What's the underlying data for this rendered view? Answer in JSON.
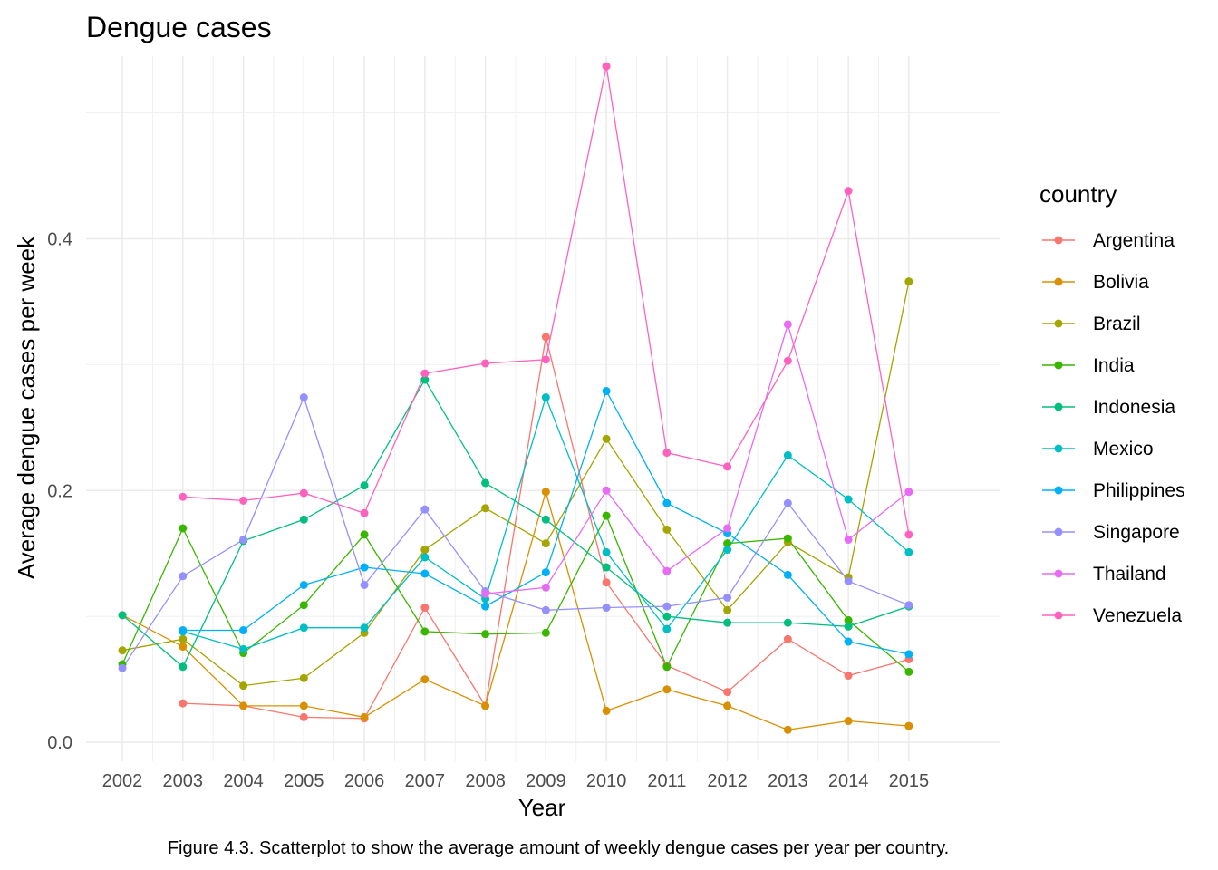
{
  "chart_data": {
    "type": "line",
    "title": "Dengue cases",
    "xlabel": "Year",
    "ylabel": "Average dengue cases per week",
    "x": [
      2002,
      2003,
      2004,
      2005,
      2006,
      2007,
      2008,
      2009,
      2010,
      2011,
      2012,
      2013,
      2014,
      2015
    ],
    "xlim": [
      2001.4,
      2016.5
    ],
    "ylim": [
      -0.015,
      0.545
    ],
    "yticks": [
      0.0,
      0.2,
      0.4
    ],
    "ytick_labels": [
      "0.0",
      "0.2",
      "0.4"
    ],
    "grid": true,
    "legend_title": "country",
    "legend_position": "right",
    "series": [
      {
        "name": "Argentina",
        "color": "#F8766D",
        "values": [
          null,
          0.031,
          0.029,
          0.02,
          0.019,
          0.107,
          0.029,
          0.322,
          0.127,
          0.061,
          0.04,
          0.082,
          0.053,
          0.066
        ]
      },
      {
        "name": "Bolivia",
        "color": "#D89000",
        "values": [
          0.101,
          0.076,
          0.029,
          0.029,
          0.02,
          0.05,
          0.029,
          0.199,
          0.025,
          0.042,
          0.029,
          0.01,
          0.017,
          0.013
        ]
      },
      {
        "name": "Brazil",
        "color": "#A3A500",
        "values": [
          0.073,
          0.082,
          0.045,
          0.051,
          0.087,
          0.153,
          0.186,
          0.158,
          0.241,
          0.169,
          0.105,
          0.159,
          0.131,
          0.366
        ]
      },
      {
        "name": "India",
        "color": "#39B600",
        "values": [
          0.062,
          0.17,
          0.071,
          0.109,
          0.165,
          0.088,
          0.086,
          0.087,
          0.18,
          0.06,
          0.158,
          0.162,
          0.097,
          0.056
        ]
      },
      {
        "name": "Indonesia",
        "color": "#00BF7D",
        "values": [
          0.101,
          0.06,
          0.16,
          0.177,
          0.204,
          0.288,
          0.206,
          0.177,
          0.139,
          0.1,
          0.095,
          0.095,
          0.092,
          0.108
        ]
      },
      {
        "name": "Mexico",
        "color": "#00BFC4",
        "values": [
          null,
          0.088,
          0.074,
          0.091,
          0.091,
          0.147,
          0.114,
          0.274,
          0.151,
          0.09,
          0.153,
          0.228,
          0.193,
          0.151
        ]
      },
      {
        "name": "Philippines",
        "color": "#00B0F6",
        "values": [
          null,
          0.089,
          0.089,
          0.125,
          0.139,
          0.134,
          0.108,
          0.135,
          0.279,
          0.19,
          0.166,
          0.133,
          0.08,
          0.07
        ]
      },
      {
        "name": "Singapore",
        "color": "#9590FF",
        "values": [
          0.059,
          0.132,
          0.161,
          0.274,
          0.125,
          0.185,
          0.12,
          0.105,
          0.107,
          0.108,
          0.115,
          0.19,
          0.128,
          0.109
        ]
      },
      {
        "name": "Thailand",
        "color": "#E76BF3",
        "values": [
          null,
          null,
          null,
          null,
          null,
          null,
          0.118,
          0.123,
          0.2,
          0.136,
          0.17,
          0.332,
          0.161,
          0.199
        ]
      },
      {
        "name": "Venezuela",
        "color": "#FF62BC",
        "values": [
          null,
          0.195,
          0.192,
          0.198,
          0.182,
          0.293,
          0.301,
          0.304,
          0.537,
          0.23,
          0.219,
          0.303,
          0.438,
          0.165
        ]
      }
    ]
  },
  "caption": "Figure 4.3. Scatterplot to show the average amount of weekly dengue cases per year per country."
}
